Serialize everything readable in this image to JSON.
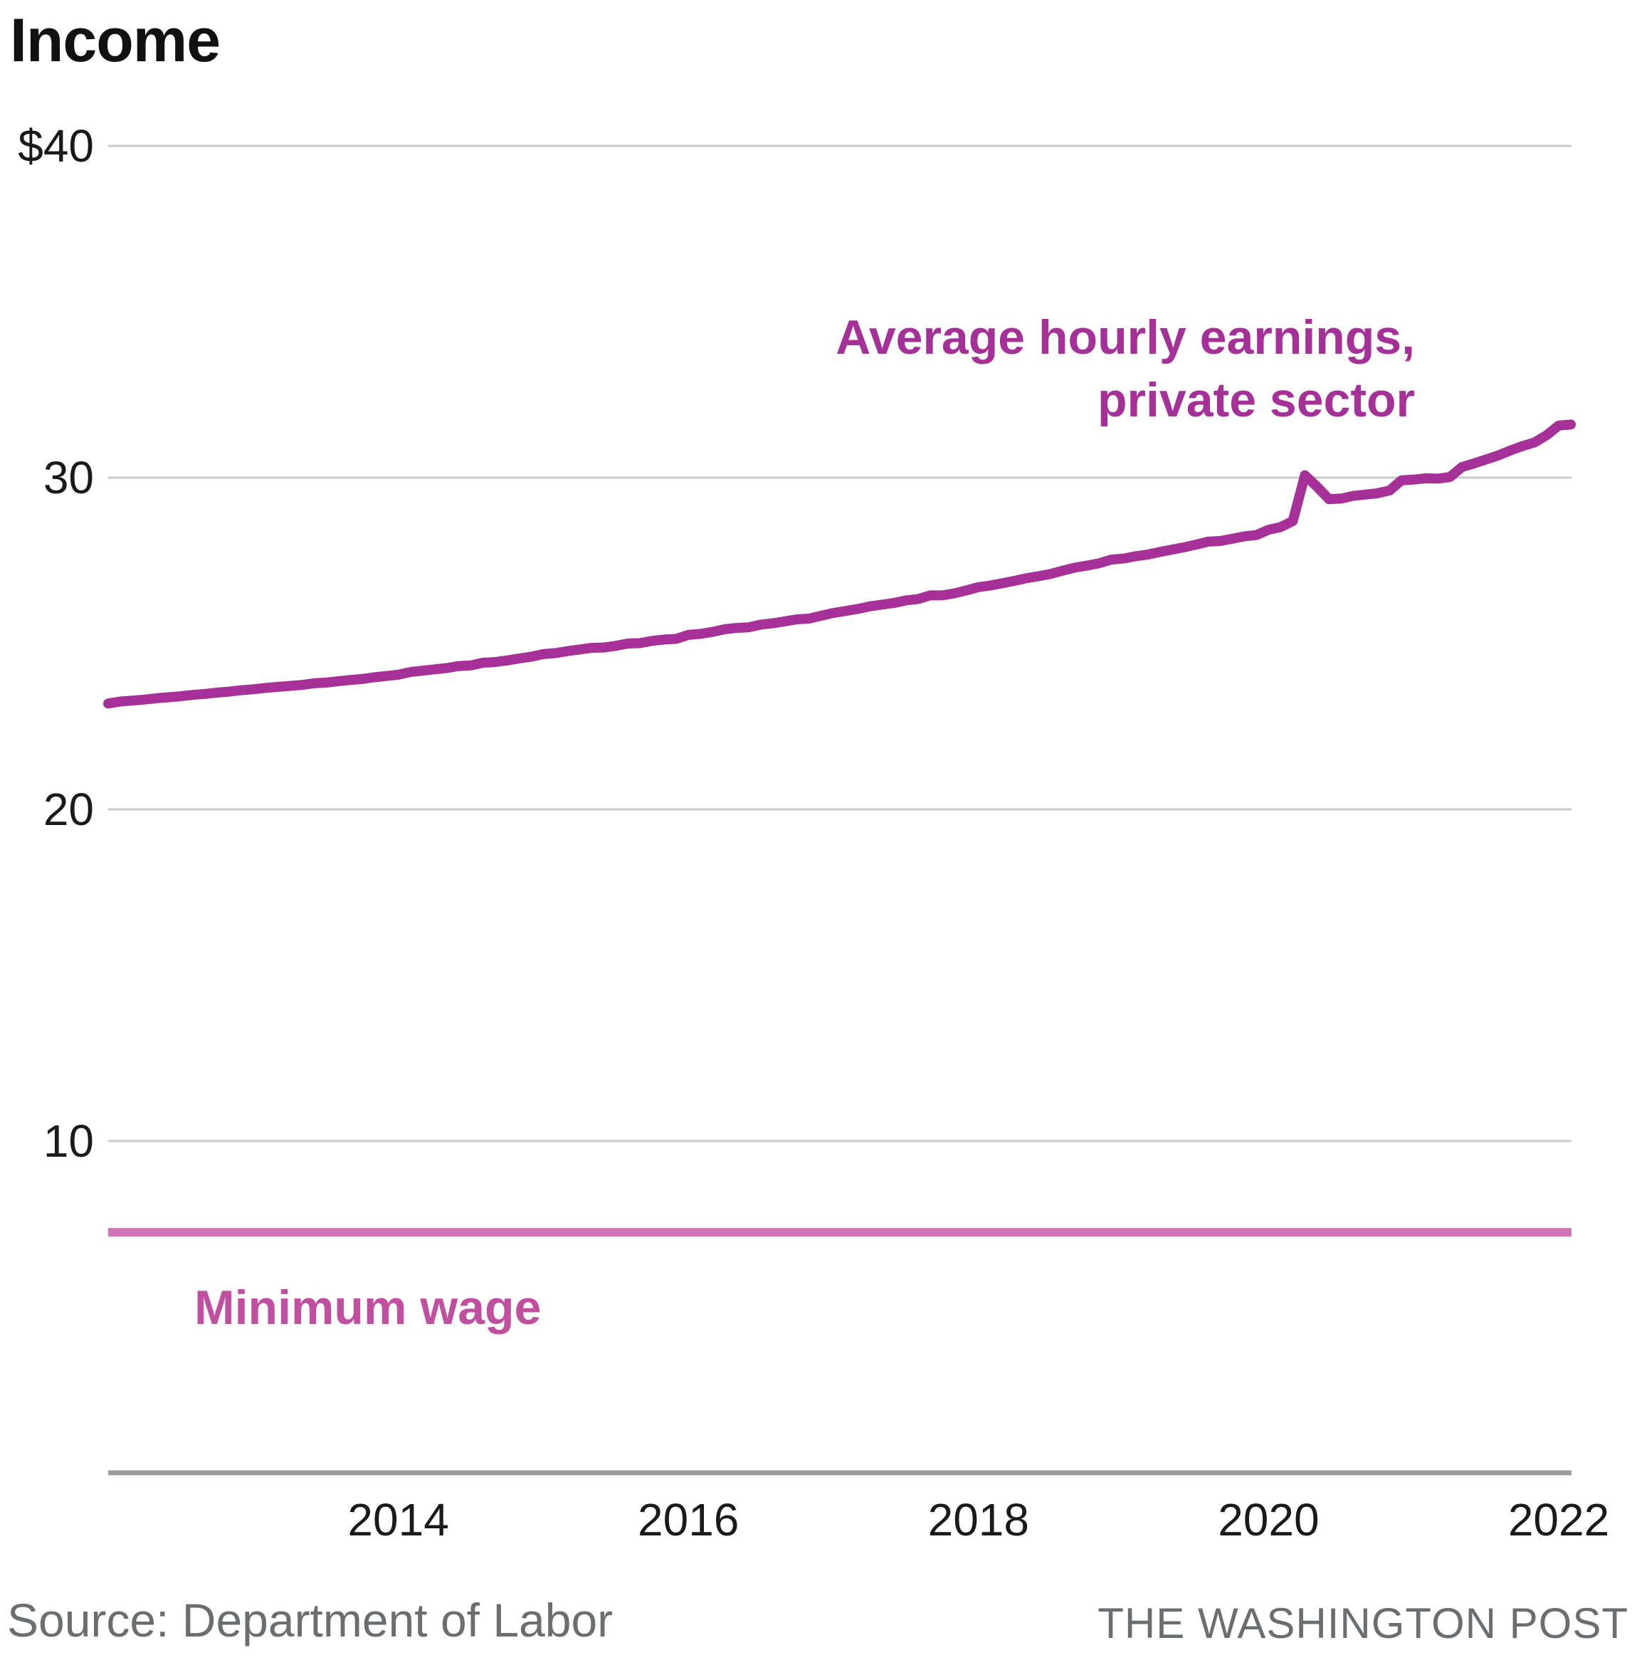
{
  "title": "Income",
  "chart_data": {
    "type": "line",
    "title": "Income",
    "x_axis": {
      "ticks": [
        2014,
        2016,
        2018,
        2020,
        2022
      ],
      "range_years": [
        2012,
        2022.25
      ],
      "grid": false
    },
    "y_axis": {
      "ticks": [
        {
          "label": "$40",
          "value": 40
        },
        {
          "label": "30",
          "value": 30
        },
        {
          "label": "20",
          "value": 20
        },
        {
          "label": "10",
          "value": 10
        }
      ],
      "range": [
        0,
        40
      ],
      "grid": true
    },
    "series": [
      {
        "name": "Average hourly earnings, private sector",
        "color": "#a53198",
        "start_year": 2012,
        "start_month": 1,
        "frequency": "monthly",
        "values": [
          23.19,
          23.25,
          23.28,
          23.31,
          23.35,
          23.38,
          23.41,
          23.45,
          23.48,
          23.52,
          23.55,
          23.59,
          23.62,
          23.66,
          23.69,
          23.72,
          23.75,
          23.8,
          23.82,
          23.86,
          23.9,
          23.93,
          23.98,
          24.02,
          24.06,
          24.14,
          24.18,
          24.22,
          24.26,
          24.32,
          24.34,
          24.42,
          24.44,
          24.49,
          24.55,
          24.6,
          24.68,
          24.71,
          24.77,
          24.82,
          24.87,
          24.88,
          24.93,
          25.0,
          25.01,
          25.08,
          25.12,
          25.14,
          25.26,
          25.29,
          25.35,
          25.43,
          25.47,
          25.49,
          25.57,
          25.61,
          25.67,
          25.73,
          25.75,
          25.84,
          25.92,
          25.98,
          26.04,
          26.12,
          26.17,
          26.22,
          26.3,
          26.34,
          26.45,
          26.45,
          26.51,
          26.6,
          26.7,
          26.75,
          26.82,
          26.89,
          26.97,
          27.03,
          27.1,
          27.2,
          27.29,
          27.35,
          27.42,
          27.53,
          27.56,
          27.63,
          27.68,
          27.76,
          27.83,
          27.9,
          27.98,
          28.07,
          28.09,
          28.16,
          28.23,
          28.27,
          28.43,
          28.51,
          28.69,
          30.07,
          29.73,
          29.35,
          29.37,
          29.45,
          29.49,
          29.53,
          29.61,
          29.92,
          29.94,
          29.98,
          29.97,
          30.02,
          30.32,
          30.43,
          30.55,
          30.67,
          30.82,
          30.95,
          31.06,
          31.28,
          31.57,
          31.6
        ]
      },
      {
        "name": "Minimum wage",
        "color": "#d173b6",
        "constant_value": 7.25
      }
    ],
    "legend_position": "inline-annotations"
  },
  "labels": {
    "earnings_annotation_line1": "Average hourly earnings,",
    "earnings_annotation_line2": "private sector",
    "min_wage_label": "Minimum wage"
  },
  "footer": {
    "source": "Source: Department of Labor",
    "attribution": "THE WASHINGTON POST"
  },
  "colors": {
    "earnings_line": "#a53198",
    "annotation_text": "#a53198",
    "min_wage_line": "#d173b6",
    "min_wage_label": "#c04f9f",
    "gridline": "#cacaca",
    "axis_line": "#9c9c9c",
    "tick_text": "#1a1a1a",
    "title_text": "#111111",
    "footer_text": "#6b6e70"
  }
}
